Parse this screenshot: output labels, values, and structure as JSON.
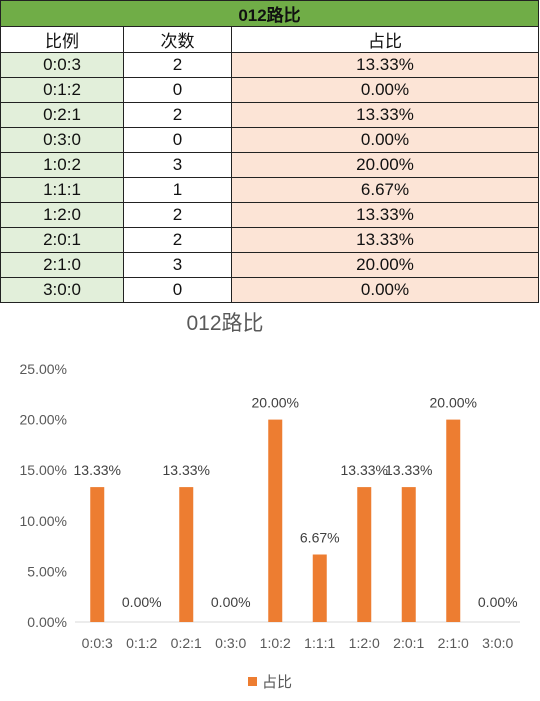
{
  "table": {
    "title": "012路比",
    "headers": [
      "比例",
      "次数",
      "占比"
    ],
    "rows": [
      {
        "ratio": "0:0:3",
        "count": "2",
        "pct": "13.33%"
      },
      {
        "ratio": "0:1:2",
        "count": "0",
        "pct": "0.00%"
      },
      {
        "ratio": "0:2:1",
        "count": "2",
        "pct": "13.33%"
      },
      {
        "ratio": "0:3:0",
        "count": "0",
        "pct": "0.00%"
      },
      {
        "ratio": "1:0:2",
        "count": "3",
        "pct": "20.00%"
      },
      {
        "ratio": "1:1:1",
        "count": "1",
        "pct": "6.67%"
      },
      {
        "ratio": "1:2:0",
        "count": "2",
        "pct": "13.33%"
      },
      {
        "ratio": "2:0:1",
        "count": "2",
        "pct": "13.33%"
      },
      {
        "ratio": "2:1:0",
        "count": "3",
        "pct": "20.00%"
      },
      {
        "ratio": "3:0:0",
        "count": "0",
        "pct": "0.00%"
      }
    ]
  },
  "chart_data": {
    "type": "bar",
    "title": "012路比",
    "categories": [
      "0:0:3",
      "0:1:2",
      "0:2:1",
      "0:3:0",
      "1:0:2",
      "1:1:1",
      "1:2:0",
      "2:0:1",
      "2:1:0",
      "3:0:0"
    ],
    "series": [
      {
        "name": "占比",
        "values": [
          13.33,
          0.0,
          13.33,
          0.0,
          20.0,
          6.67,
          13.33,
          13.33,
          20.0,
          0.0
        ],
        "color": "#ed7d31"
      }
    ],
    "data_labels": [
      "13.33%",
      "0.00%",
      "13.33%",
      "0.00%",
      "20.00%",
      "6.67%",
      "13.33%",
      "13.33%",
      "20.00%",
      "0.00%"
    ],
    "yticks": [
      "0.00%",
      "5.00%",
      "10.00%",
      "15.00%",
      "20.00%",
      "25.00%"
    ],
    "ylim": [
      0,
      25
    ],
    "grid": false,
    "legend_position": "bottom"
  }
}
